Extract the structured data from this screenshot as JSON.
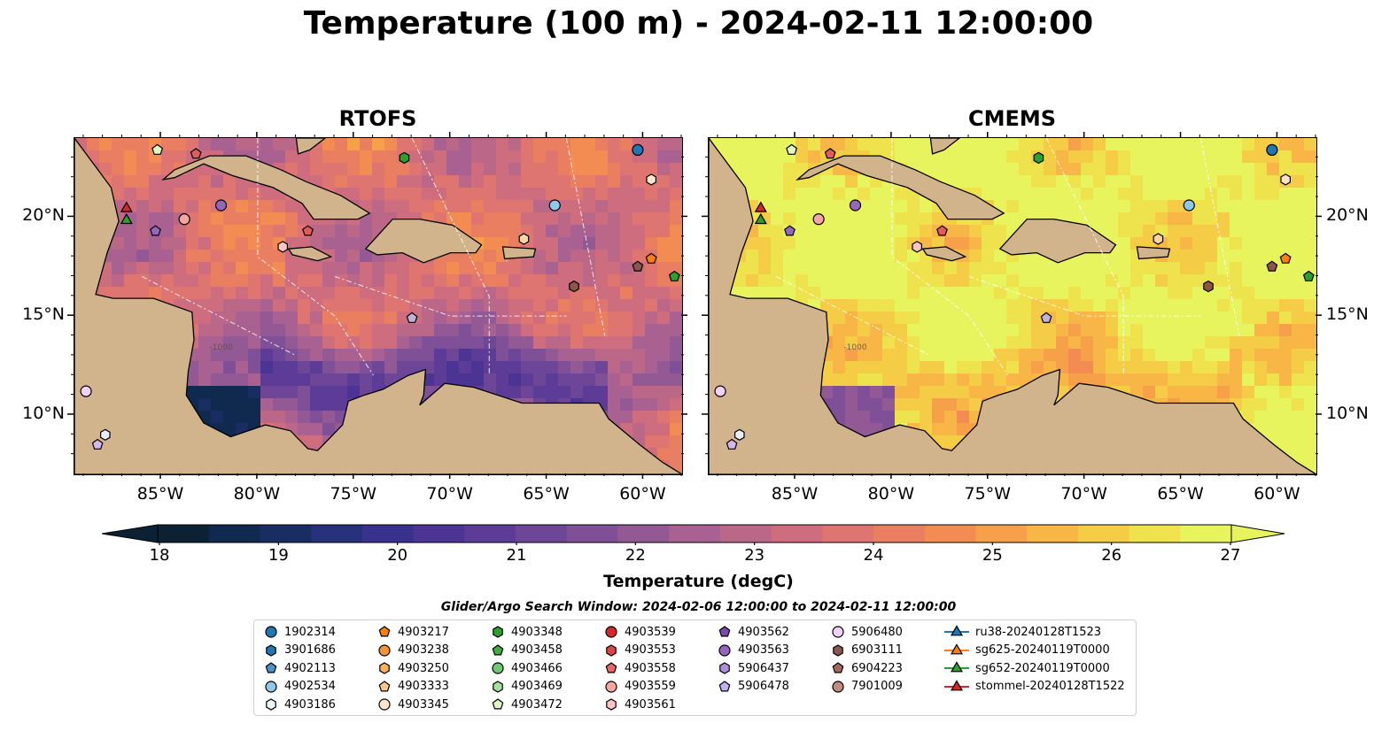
{
  "title": "Temperature (100 m) - 2024-02-11 12:00:00",
  "panels": [
    {
      "title": "RTOFS",
      "palette_shift": 0
    },
    {
      "title": "CMEMS",
      "palette_shift": 0.35
    }
  ],
  "map": {
    "lon_range": [
      -89.5,
      -58
    ],
    "lat_range": [
      7,
      24
    ],
    "lon_ticks": [
      {
        "value": -85,
        "label": "85°W"
      },
      {
        "value": -80,
        "label": "80°W"
      },
      {
        "value": -75,
        "label": "75°W"
      },
      {
        "value": -70,
        "label": "70°W"
      },
      {
        "value": -65,
        "label": "65°W"
      },
      {
        "value": -60,
        "label": "60°W"
      }
    ],
    "lat_ticks": [
      {
        "value": 20,
        "label": "20°N"
      },
      {
        "value": 15,
        "label": "15°N"
      },
      {
        "value": 10,
        "label": "10°N"
      }
    ],
    "land_color": "#d2b48c",
    "shelf_color": "#9dbbe0",
    "contour_label": "-1000",
    "land_polygons": [
      {
        "name": "central-america",
        "points": [
          [
            -89.5,
            24
          ],
          [
            -87.6,
            21.5
          ],
          [
            -87.2,
            19.8
          ],
          [
            -87.8,
            18.2
          ],
          [
            -88.4,
            16.1
          ],
          [
            -87.5,
            15.9
          ],
          [
            -85.4,
            15.9
          ],
          [
            -83.4,
            15.2
          ],
          [
            -83.3,
            13.8
          ],
          [
            -83.6,
            12.2
          ],
          [
            -83.7,
            11.0
          ],
          [
            -82.8,
            9.6
          ],
          [
            -81.4,
            8.9
          ],
          [
            -79.6,
            9.5
          ],
          [
            -78.3,
            9.2
          ],
          [
            -77.4,
            8.3
          ],
          [
            -76.9,
            8.2
          ],
          [
            -75.6,
            9.5
          ],
          [
            -75.3,
            10.7
          ],
          [
            -74.5,
            11.0
          ],
          [
            -73.5,
            11.3
          ],
          [
            -72.2,
            12.0
          ],
          [
            -71.3,
            12.3
          ],
          [
            -71.4,
            11.0
          ],
          [
            -71.6,
            10.5
          ],
          [
            -70.3,
            11.6
          ],
          [
            -68.8,
            11.4
          ],
          [
            -66.3,
            10.6
          ],
          [
            -64.0,
            10.6
          ],
          [
            -62.3,
            10.6
          ],
          [
            -61.8,
            9.8
          ],
          [
            -60.2,
            8.5
          ],
          [
            -59.0,
            7.6
          ],
          [
            -58,
            7
          ],
          [
            -89.5,
            7
          ]
        ]
      },
      {
        "name": "cuba",
        "points": [
          [
            -84.9,
            21.9
          ],
          [
            -84.3,
            22.4
          ],
          [
            -82.5,
            23.1
          ],
          [
            -80.6,
            23.1
          ],
          [
            -78.8,
            22.4
          ],
          [
            -77.5,
            21.8
          ],
          [
            -75.7,
            21.1
          ],
          [
            -74.2,
            20.2
          ],
          [
            -74.8,
            19.9
          ],
          [
            -77.1,
            19.9
          ],
          [
            -77.7,
            20.7
          ],
          [
            -79.2,
            21.5
          ],
          [
            -81.3,
            22.1
          ],
          [
            -82.8,
            22.7
          ],
          [
            -84.3,
            22.0
          ]
        ]
      },
      {
        "name": "hispaniola",
        "points": [
          [
            -74.4,
            18.4
          ],
          [
            -73.0,
            19.9
          ],
          [
            -71.6,
            19.9
          ],
          [
            -69.9,
            19.6
          ],
          [
            -68.4,
            18.6
          ],
          [
            -68.7,
            18.2
          ],
          [
            -70.0,
            18.2
          ],
          [
            -71.4,
            17.7
          ],
          [
            -72.5,
            18.2
          ],
          [
            -73.8,
            18.1
          ]
        ]
      },
      {
        "name": "jamaica",
        "points": [
          [
            -78.4,
            18.4
          ],
          [
            -77.2,
            18.5
          ],
          [
            -76.2,
            18.0
          ],
          [
            -76.9,
            17.8
          ],
          [
            -78.2,
            18.1
          ]
        ]
      },
      {
        "name": "puerto-rico",
        "points": [
          [
            -67.3,
            18.5
          ],
          [
            -65.6,
            18.4
          ],
          [
            -65.7,
            18.0
          ],
          [
            -67.2,
            17.9
          ]
        ]
      },
      {
        "name": "bahamas",
        "points": [
          [
            -78.0,
            24
          ],
          [
            -76.5,
            24
          ],
          [
            -77.3,
            23.4
          ],
          [
            -77.9,
            23.2
          ]
        ]
      }
    ],
    "markers": [
      {
        "lon": -60.3,
        "lat": 23.4,
        "shape": "circle",
        "color": "#1f77b4"
      },
      {
        "lon": -59.6,
        "lat": 21.9,
        "shape": "hexagon",
        "color": "#ffe4cc"
      },
      {
        "lon": -64.6,
        "lat": 20.6,
        "shape": "circle",
        "color": "#8ec9ea"
      },
      {
        "lon": -81.9,
        "lat": 20.6,
        "shape": "circle",
        "color": "#9467bd"
      },
      {
        "lon": -83.8,
        "lat": 19.9,
        "shape": "circle",
        "color": "#f6a6a0"
      },
      {
        "lon": -85.3,
        "lat": 19.3,
        "shape": "pentagon",
        "color": "#9467bd"
      },
      {
        "lon": -77.4,
        "lat": 19.3,
        "shape": "pentagon",
        "color": "#e35a5a"
      },
      {
        "lon": -78.7,
        "lat": 18.5,
        "shape": "hexagon",
        "color": "#ffc4c4"
      },
      {
        "lon": -66.2,
        "lat": 18.9,
        "shape": "hexagon",
        "color": "#fdd3a0"
      },
      {
        "lon": -59.6,
        "lat": 17.9,
        "shape": "pentagon",
        "color": "#ff7f0e"
      },
      {
        "lon": -60.3,
        "lat": 17.5,
        "shape": "pentagon",
        "color": "#8c564b"
      },
      {
        "lon": -58.4,
        "lat": 17.0,
        "shape": "pentagon",
        "color": "#2ca02c"
      },
      {
        "lon": -63.6,
        "lat": 16.5,
        "shape": "hexagon",
        "color": "#8c564b"
      },
      {
        "lon": -72.0,
        "lat": 14.9,
        "shape": "pentagon",
        "color": "#c5b0d5"
      },
      {
        "lon": -72.4,
        "lat": 23.0,
        "shape": "hexagon",
        "color": "#2ca02c"
      },
      {
        "lon": -83.2,
        "lat": 23.2,
        "shape": "pentagon",
        "color": "#e35a5a"
      },
      {
        "lon": -85.2,
        "lat": 23.4,
        "shape": "pentagon",
        "color": "#dff7c2"
      },
      {
        "lon": -88.9,
        "lat": 11.2,
        "shape": "circle",
        "color": "#f1d1f7"
      },
      {
        "lon": -87.9,
        "lat": 9.0,
        "shape": "hexagon",
        "color": "#e8eefb"
      },
      {
        "lon": -88.3,
        "lat": 8.5,
        "shape": "pentagon",
        "color": "#d4b7f0"
      },
      {
        "lon": -86.8,
        "lat": 20.5,
        "shape": "triangle",
        "color": "#d62728"
      },
      {
        "lon": -86.8,
        "lat": 19.9,
        "shape": "triangle",
        "color": "#2ca02c"
      }
    ]
  },
  "colorbar": {
    "label": "Temperature (degC)",
    "min": 18,
    "max": 27,
    "tick_values": [
      18,
      19,
      20,
      21,
      22,
      23,
      24,
      25,
      26,
      27
    ],
    "ticks": [
      "18",
      "19",
      "20",
      "21",
      "22",
      "23",
      "24",
      "25",
      "26",
      "27"
    ],
    "colors": [
      "#0d2135",
      "#0f2a4e",
      "#192d63",
      "#27307a",
      "#38318e",
      "#4b3494",
      "#5c3c96",
      "#6d4697",
      "#7f5097",
      "#935995",
      "#a86191",
      "#bb6788",
      "#ce6d7d",
      "#de7570",
      "#e97f60",
      "#f28c52",
      "#f6a04a",
      "#f7b645",
      "#f4cc45",
      "#eee24d",
      "#e8f45e"
    ]
  },
  "search_window": "Glider/Argo Search Window: 2024-02-06 12:00:00 to 2024-02-11 12:00:00",
  "legend": {
    "columns": [
      [
        {
          "label": "1902314",
          "shape": "circle",
          "color": "#1f77b4"
        },
        {
          "label": "3901686",
          "shape": "hexagon",
          "color": "#1f77b4"
        },
        {
          "label": "4902113",
          "shape": "pentagon",
          "color": "#4f91c9"
        },
        {
          "label": "4902534",
          "shape": "circle",
          "color": "#8ec9ea"
        },
        {
          "label": "4903186",
          "shape": "hexagon",
          "color": "#e8f4fc"
        }
      ],
      [
        {
          "label": "4903217",
          "shape": "pentagon",
          "color": "#ff7f0e"
        },
        {
          "label": "4903238",
          "shape": "circle",
          "color": "#f5923a"
        },
        {
          "label": "4903250",
          "shape": "hexagon",
          "color": "#ffae5c"
        },
        {
          "label": "4903333",
          "shape": "pentagon",
          "color": "#fdc590"
        },
        {
          "label": "4903345",
          "shape": "circle",
          "color": "#ffe4cc"
        }
      ],
      [
        {
          "label": "4903348",
          "shape": "hexagon",
          "color": "#2ca02c"
        },
        {
          "label": "4903458",
          "shape": "pentagon",
          "color": "#3fae3f"
        },
        {
          "label": "4903466",
          "shape": "circle",
          "color": "#70c970"
        },
        {
          "label": "4903469",
          "shape": "hexagon",
          "color": "#a6e0a0"
        },
        {
          "label": "4903472",
          "shape": "pentagon",
          "color": "#dff7c2"
        }
      ],
      [
        {
          "label": "4903539",
          "shape": "circle",
          "color": "#d62728"
        },
        {
          "label": "4903553",
          "shape": "hexagon",
          "color": "#e04545"
        },
        {
          "label": "4903558",
          "shape": "pentagon",
          "color": "#e86868"
        },
        {
          "label": "4903559",
          "shape": "circle",
          "color": "#f6a6a0"
        },
        {
          "label": "4903561",
          "shape": "hexagon",
          "color": "#ffc4c4"
        }
      ],
      [
        {
          "label": "4903562",
          "shape": "pentagon",
          "color": "#7b4bb0"
        },
        {
          "label": "4903563",
          "shape": "circle",
          "color": "#9467bd"
        },
        {
          "label": "5906437",
          "shape": "hexagon",
          "color": "#ad8fd8"
        },
        {
          "label": "5906478",
          "shape": "pentagon",
          "color": "#c5b0f0"
        }
      ],
      [
        {
          "label": "5906480",
          "shape": "circle",
          "color": "#f1d1f7"
        },
        {
          "label": "6903111",
          "shape": "hexagon",
          "color": "#8c564b"
        },
        {
          "label": "6904223",
          "shape": "pentagon",
          "color": "#a36a5c"
        },
        {
          "label": "7901009",
          "shape": "circle",
          "color": "#c08b80"
        }
      ],
      [
        {
          "label": "ru38-20240128T1523",
          "shape": "triangle-line",
          "color": "#1f77b4"
        },
        {
          "label": "sg625-20240119T0000",
          "shape": "triangle-line",
          "color": "#ff7f0e"
        },
        {
          "label": "sg652-20240119T0000",
          "shape": "triangle-line",
          "color": "#2ca02c"
        },
        {
          "label": "stommel-20240128T1522",
          "shape": "triangle-line",
          "color": "#d62728"
        }
      ]
    ]
  }
}
